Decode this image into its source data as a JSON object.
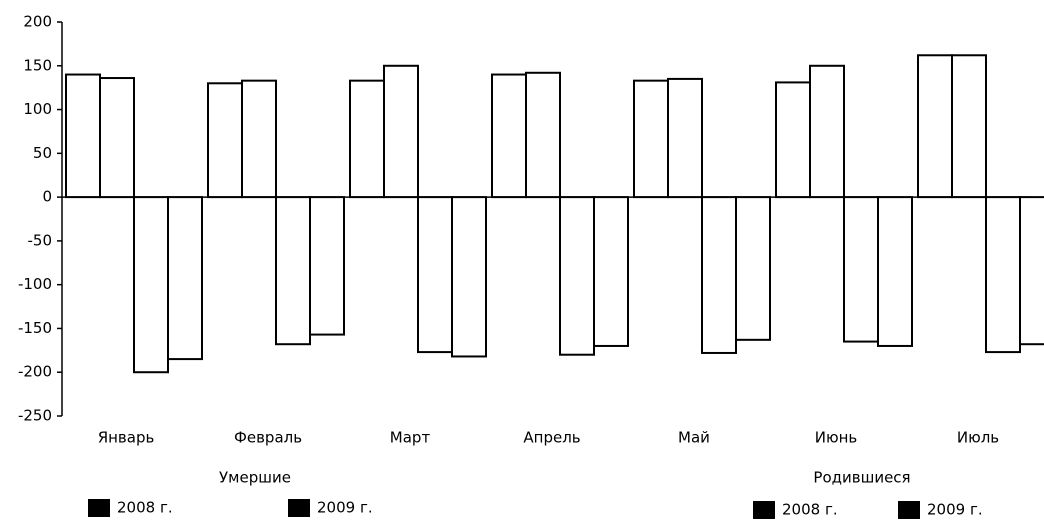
{
  "chart_data": {
    "type": "bar",
    "categories": [
      "Январь",
      "Февраль",
      "Март",
      "Апрель",
      "Май",
      "Июнь",
      "Июль"
    ],
    "groups": [
      {
        "title": "Умершие",
        "series": [
          {
            "name": "2008 г.",
            "color": "#000000",
            "values": [
              -200,
              -168,
              -177,
              -180,
              -178,
              -165,
              -177
            ]
          },
          {
            "name": "2009 г.",
            "color": "#000000",
            "values": [
              -185,
              -157,
              -182,
              -170,
              -163,
              -170,
              -168
            ]
          }
        ]
      },
      {
        "title": "Родившиеся",
        "series": [
          {
            "name": "2008 г.",
            "color": "#000000",
            "values": [
              140,
              130,
              133,
              140,
              133,
              131,
              162
            ]
          },
          {
            "name": "2009 г.",
            "color": "#000000",
            "values": [
              136,
              133,
              150,
              142,
              135,
              150,
              162
            ]
          }
        ]
      }
    ],
    "ylim": [
      -250,
      200
    ],
    "yticks": [
      -250,
      -200,
      -150,
      -100,
      -50,
      0,
      50,
      100,
      150,
      200
    ],
    "grid": false
  }
}
